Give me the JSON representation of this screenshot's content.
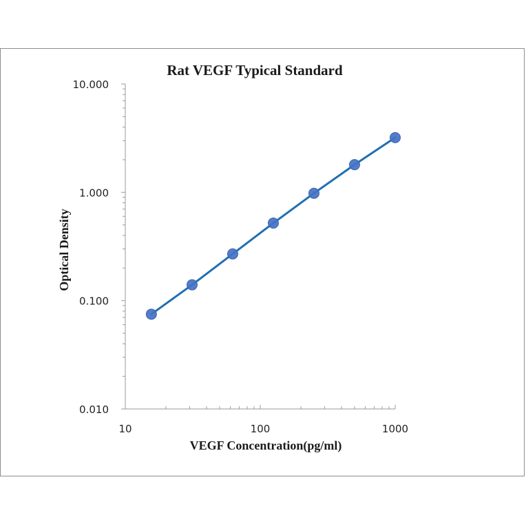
{
  "chart_data": {
    "type": "scatter",
    "title": "Rat VEGF Typical Standard",
    "xlabel": "VEGF Concentration(pg/ml)",
    "ylabel": "Optical Density",
    "x_scale": "log",
    "y_scale": "log",
    "xlim": [
      10,
      1000
    ],
    "ylim": [
      0.01,
      10
    ],
    "x_ticks": [
      10,
      100,
      1000
    ],
    "x_tick_labels": [
      "10",
      "100",
      "1000"
    ],
    "y_ticks": [
      0.01,
      0.1,
      1,
      10
    ],
    "y_tick_labels": [
      "0.010",
      "0.100",
      "1.000",
      "10.000"
    ],
    "grid": false,
    "legend": "none",
    "series": [
      {
        "x": [
          15.6,
          31.25,
          62.5,
          125,
          250,
          500,
          1000
        ],
        "y": [
          0.075,
          0.14,
          0.27,
          0.52,
          0.98,
          1.8,
          3.2
        ],
        "marker_color": "#4472c4",
        "line_color": "#1f6fb2",
        "trendline": true
      }
    ]
  }
}
